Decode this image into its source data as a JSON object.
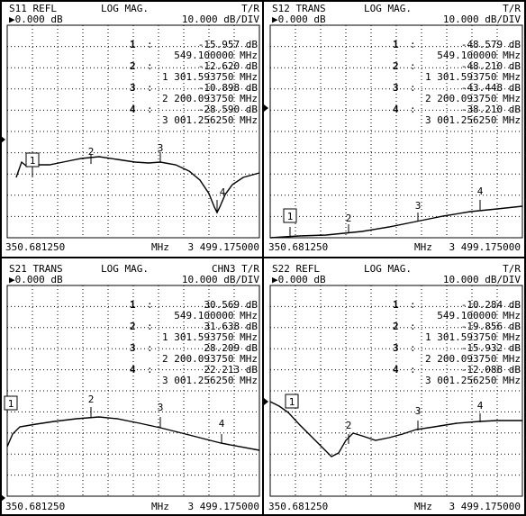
{
  "colors": {
    "background": "#ffffff",
    "trace": "#000000",
    "grid": "#000000"
  },
  "panels": [
    {
      "param": "S11 REFL",
      "format": "LOG MAG.",
      "channel": "T/R",
      "ref": "▶0.000 dB",
      "scale": "10.000 dB/DIV",
      "markers": [
        {
          "num": "1",
          "colon": ":",
          "value": "-15.957 dB",
          "freq": "549.100000 MHz"
        },
        {
          "num": "2",
          "colon": ":",
          "value": "-12.620 dB",
          "freq": "1 301.593750 MHz"
        },
        {
          "num": "3",
          "colon": ":",
          "value": "-10.898 dB",
          "freq": "2 200.093750 MHz"
        },
        {
          "num": "4",
          "colon": ":",
          "value": "-28.590 dB",
          "freq": "3 001.256250 MHz"
        }
      ],
      "start": "350.681250",
      "unit": "MHz",
      "stop": "3 499.175000",
      "trace_label_1": "1",
      "trace_label_2": "2",
      "trace_label_3": "3",
      "trace_label_4": "4"
    },
    {
      "param": "S12 TRANS",
      "format": "LOG MAG.",
      "channel": "T/R",
      "ref": "▶0.000 dB",
      "scale": "10.000 dB/DIV",
      "markers": [
        {
          "num": "1",
          "colon": ":",
          "value": "-48.579 dB",
          "freq": "549.100000 MHz"
        },
        {
          "num": "2",
          "colon": ":",
          "value": "-48.210 dB",
          "freq": "1 301.593750 MHz"
        },
        {
          "num": "3",
          "colon": ":",
          "value": "-43.448 dB",
          "freq": "2 200.093750 MHz"
        },
        {
          "num": "4",
          "colon": ":",
          "value": "-38.210 dB",
          "freq": "3 001.256250 MHz"
        }
      ],
      "start": "350.681250",
      "unit": "MHz",
      "stop": "3 499.175000",
      "trace_label_1": "1",
      "trace_label_2": "2",
      "trace_label_3": "3",
      "trace_label_4": "4"
    },
    {
      "param": "S21 TRANS",
      "format": "LOG MAG.",
      "channel": "CHN3 T/R",
      "ref": "▶0.000 dB",
      "scale": "10.000 dB/DIV",
      "markers": [
        {
          "num": "1",
          "colon": ":",
          "value": "30.569 dB",
          "freq": "549.100000 MHz"
        },
        {
          "num": "2",
          "colon": ":",
          "value": "31.638 dB",
          "freq": "1 301.593750 MHz"
        },
        {
          "num": "3",
          "colon": ":",
          "value": "28.209 dB",
          "freq": "2 200.093750 MHz"
        },
        {
          "num": "4",
          "colon": ":",
          "value": "22.213 dB",
          "freq": "3 001.256250 MHz"
        }
      ],
      "start": "350.681250",
      "unit": "MHz",
      "stop": "3 499.175000",
      "trace_label_1": "1",
      "trace_label_2": "2",
      "trace_label_3": "3",
      "trace_label_4": "4"
    },
    {
      "param": "S22 REFL",
      "format": "LOG MAG.",
      "channel": "T/R",
      "ref": "▶0.000 dB",
      "scale": "10.000 dB/DIV",
      "markers": [
        {
          "num": "1",
          "colon": ":",
          "value": "-10.284 dB",
          "freq": "549.100000 MHz"
        },
        {
          "num": "2",
          "colon": ":",
          "value": "-19.856 dB",
          "freq": "1 301.593750 MHz"
        },
        {
          "num": "3",
          "colon": ":",
          "value": "-15.932 dB",
          "freq": "2 200.093750 MHz"
        },
        {
          "num": "4",
          "colon": ":",
          "value": "-12.088 dB",
          "freq": "3 001.256250 MHz"
        }
      ],
      "start": "350.681250",
      "unit": "MHz",
      "stop": "3 499.175000",
      "trace_label_1": "1",
      "trace_label_2": "2",
      "trace_label_3": "3",
      "trace_label_4": "4"
    }
  ]
}
